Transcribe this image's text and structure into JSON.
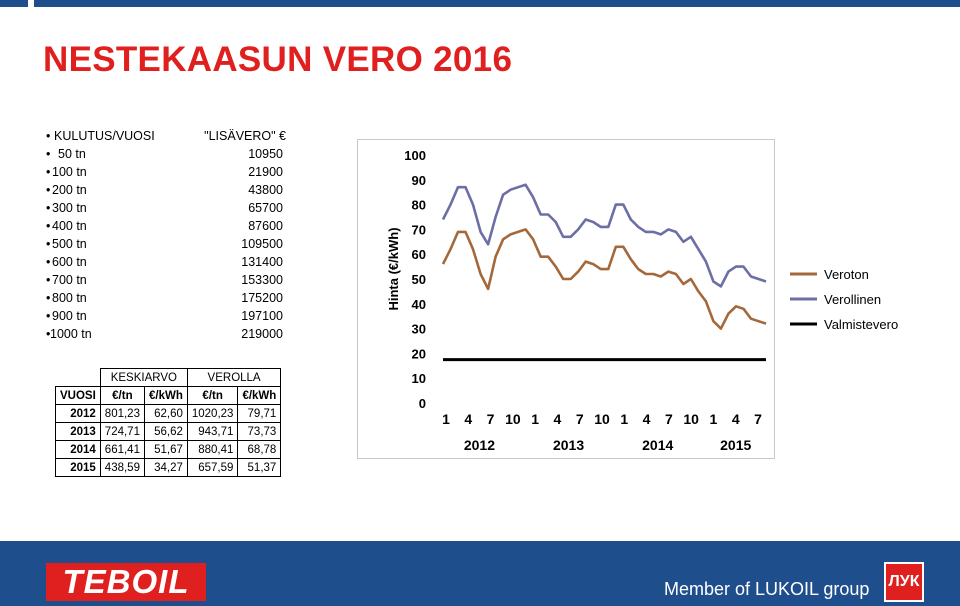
{
  "title": "NESTEKAASUN VERO 2016",
  "consumption_list": {
    "header_label": "KULUTUS/VUOSI",
    "header_value": "\"LISÄVERO\" €",
    "rows": [
      {
        "label": "50 tn",
        "value": "10950"
      },
      {
        "label": "100 tn",
        "value": "21900"
      },
      {
        "label": "200 tn",
        "value": "43800"
      },
      {
        "label": "300 tn",
        "value": "65700"
      },
      {
        "label": "400 tn",
        "value": "87600"
      },
      {
        "label": "500 tn",
        "value": "109500"
      },
      {
        "label": "600 tn",
        "value": "131400"
      },
      {
        "label": "700 tn",
        "value": "153300"
      },
      {
        "label": "800 tn",
        "value": "175200"
      },
      {
        "label": "900 tn",
        "value": "197100"
      },
      {
        "label": "1000 tn",
        "value": "219000"
      }
    ]
  },
  "price_table": {
    "group_headers": [
      "KESKIARVO",
      "VEROLLA"
    ],
    "col_headers": [
      "VUOSI",
      "€/tn",
      "€/kWh",
      "€/tn",
      "€/kWh"
    ],
    "rows": [
      [
        "2012",
        "801,23",
        "62,60",
        "1020,23",
        "79,71"
      ],
      [
        "2013",
        "724,71",
        "56,62",
        "943,71",
        "73,73"
      ],
      [
        "2014",
        "661,41",
        "51,67",
        "880,41",
        "68,78"
      ],
      [
        "2015",
        "438,59",
        "34,27",
        "657,59",
        "51,37"
      ]
    ]
  },
  "chart_data": {
    "type": "line",
    "ylabel": "Hinta (€/kWh)",
    "ylim": [
      0,
      100
    ],
    "yticks": [
      "0",
      "10",
      "20",
      "30",
      "40",
      "50",
      "60",
      "70",
      "80",
      "90",
      "100"
    ],
    "x_month_labels": [
      "1",
      "4",
      "7",
      "10",
      "1",
      "4",
      "7",
      "10",
      "1",
      "4",
      "7",
      "10",
      "1",
      "4",
      "7"
    ],
    "year_labels": [
      "2012",
      "2013",
      "2014",
      "2015"
    ],
    "legend_position": "right",
    "series": [
      {
        "name": "Veroton",
        "color": "#a5683a",
        "values": [
          56,
          62,
          69,
          69,
          62,
          52,
          46,
          59,
          66,
          68,
          69,
          70,
          66,
          59,
          59,
          55,
          50,
          50,
          53,
          57,
          56,
          54,
          54,
          63,
          63,
          58,
          54,
          52,
          52,
          51,
          53,
          52,
          48,
          50,
          45,
          41,
          33,
          30,
          36,
          39,
          38,
          34,
          33,
          32
        ]
      },
      {
        "name": "Verollinen",
        "color": "#6b6fa3",
        "values": [
          74,
          80,
          87,
          87,
          80,
          69,
          64,
          75,
          84,
          86,
          87,
          88,
          83,
          76,
          76,
          73,
          67,
          67,
          70,
          74,
          73,
          71,
          71,
          80,
          80,
          74,
          71,
          69,
          69,
          68,
          70,
          69,
          65,
          67,
          62,
          57,
          49,
          47,
          53,
          55,
          55,
          51,
          50,
          49
        ]
      },
      {
        "name": "Valmistevero",
        "color": "#000000",
        "values": [
          17.5,
          17.5,
          17.5,
          17.5,
          17.5,
          17.5,
          17.5,
          17.5,
          17.5,
          17.5,
          17.5,
          17.5,
          17.5,
          17.5,
          17.5,
          17.5,
          17.5,
          17.5,
          17.5,
          17.5,
          17.5,
          17.5,
          17.5,
          17.5,
          17.5,
          17.5,
          17.5,
          17.5,
          17.5,
          17.5,
          17.5,
          17.5,
          17.5,
          17.5,
          17.5,
          17.5,
          17.5,
          17.5,
          17.5,
          17.5,
          17.5,
          17.5,
          17.5,
          17.5
        ]
      }
    ]
  },
  "footer": {
    "logo_text": "TEBOIL",
    "member_text": "Member of LUKOIL group",
    "lukoil_mark": "ЛУК"
  },
  "colors": {
    "title": "#e0201f",
    "footer_bg": "#1f4e8c",
    "brand_red": "#e0201f"
  }
}
